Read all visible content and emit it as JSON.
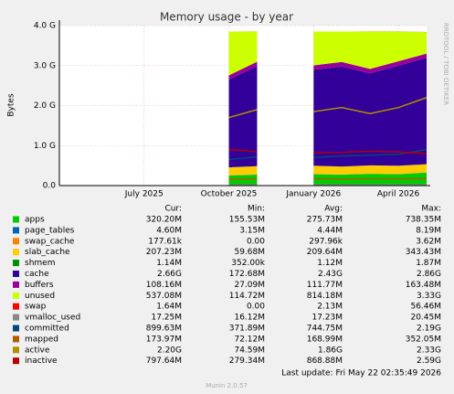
{
  "chart_data": {
    "type": "area",
    "title": "Memory usage - by year",
    "y_label": "Bytes",
    "side_text": "RRDTOOL / TOBI OETIKER",
    "footer": "Last update: Fri May 22 02:35:49 2026",
    "credit": "Munin 2.0.57",
    "stat_headers": [
      "Cur:",
      "Min:",
      "Avg:",
      "Max:"
    ],
    "x": [
      "2025-10",
      "2025-11",
      "2025-12",
      "2026-01",
      "2026-02",
      "2026-03",
      "2026-04",
      "2026-05"
    ],
    "xlim": [
      "2025-04",
      "2026-05"
    ],
    "xticks": [
      {
        "value": "2025-07",
        "label": "July 2025"
      },
      {
        "value": "2025-10",
        "label": "October 2025"
      },
      {
        "value": "2026-01",
        "label": "January 2026"
      },
      {
        "value": "2026-04",
        "label": "April 2026"
      }
    ],
    "ylim": [
      0,
      4000000000
    ],
    "yticks": [
      {
        "value": 0,
        "label": "0.0"
      },
      {
        "value": 1000000000,
        "label": "1.0 G"
      },
      {
        "value": 2000000000,
        "label": "2.0 G"
      },
      {
        "value": 3000000000,
        "label": "3.0 G"
      },
      {
        "value": 4000000000,
        "label": "4.0 G"
      }
    ],
    "grid": true,
    "series": [
      {
        "name": "apps",
        "color": "#00cc00",
        "draw": "area",
        "cur": "320.20M",
        "min": "155.53M",
        "avg": "275.73M",
        "max": "738.35M",
        "values": [
          250000000,
          270000000,
          null,
          280000000,
          270000000,
          290000000,
          280000000,
          320000000
        ]
      },
      {
        "name": "page_tables",
        "color": "#0066b3",
        "draw": "area",
        "cur": "4.60M",
        "min": "3.15M",
        "avg": "4.44M",
        "max": "8.19M",
        "values": [
          4000000,
          4500000,
          null,
          4400000,
          4400000,
          4500000,
          4500000,
          4600000
        ]
      },
      {
        "name": "swap_cache",
        "color": "#ff8000",
        "draw": "area",
        "cur": "177.61k",
        "min": "0.00",
        "avg": "297.96k",
        "max": "3.62M",
        "values": [
          200000,
          300000,
          null,
          300000,
          300000,
          300000,
          300000,
          177610
        ]
      },
      {
        "name": "slab_cache",
        "color": "#ffcc00",
        "draw": "area",
        "cur": "207.23M",
        "min": "59.68M",
        "avg": "209.64M",
        "max": "343.43M",
        "values": [
          200000000,
          210000000,
          null,
          210000000,
          200000000,
          210000000,
          210000000,
          207000000
        ]
      },
      {
        "name": "shmem",
        "color": "#008f00",
        "draw": "area",
        "cur": "1.14M",
        "min": "352.00k",
        "avg": "1.12M",
        "max": "1.87M",
        "values": [
          1100000,
          1100000,
          null,
          1100000,
          1100000,
          1100000,
          1100000,
          1140000
        ]
      },
      {
        "name": "cache",
        "color": "#330099",
        "draw": "area",
        "cur": "2.66G",
        "min": "172.68M",
        "avg": "2.43G",
        "max": "2.86G",
        "values": [
          2200000000,
          2500000000,
          null,
          2400000000,
          2500000000,
          2300000000,
          2500000000,
          2660000000
        ]
      },
      {
        "name": "buffers",
        "color": "#990099",
        "draw": "area",
        "cur": "108.16M",
        "min": "27.09M",
        "avg": "111.77M",
        "max": "163.48M",
        "values": [
          100000000,
          110000000,
          null,
          110000000,
          115000000,
          110000000,
          112000000,
          108000000
        ]
      },
      {
        "name": "unused",
        "color": "#ccff00",
        "draw": "area",
        "cur": "537.08M",
        "min": "114.72M",
        "avg": "814.18M",
        "max": "3.33G",
        "values": [
          1095000000,
          755000000,
          null,
          845000000,
          760000000,
          935000000,
          743000000,
          537000000
        ]
      },
      {
        "name": "swap",
        "color": "#ff0000",
        "draw": "area",
        "cur": "1.64M",
        "min": "0.00",
        "avg": "2.13M",
        "max": "56.46M",
        "values": [
          2000000,
          2000000,
          null,
          2000000,
          2000000,
          2000000,
          2000000,
          1640000
        ]
      },
      {
        "name": "vmalloc_used",
        "color": "#888888",
        "draw": "line",
        "cur": "17.25M",
        "min": "16.12M",
        "avg": "17.23M",
        "max": "20.45M",
        "values": [
          17000000,
          17000000,
          null,
          17200000,
          17200000,
          17200000,
          17200000,
          17250000
        ]
      },
      {
        "name": "committed",
        "color": "#00487d",
        "draw": "line",
        "cur": "899.63M",
        "min": "371.89M",
        "avg": "744.75M",
        "max": "2.19G",
        "values": [
          650000000,
          720000000,
          null,
          700000000,
          740000000,
          760000000,
          780000000,
          900000000
        ]
      },
      {
        "name": "mapped",
        "color": "#b35a00",
        "draw": "line",
        "cur": "173.97M",
        "min": "72.12M",
        "avg": "168.99M",
        "max": "352.05M",
        "values": [
          160000000,
          170000000,
          null,
          170000000,
          165000000,
          170000000,
          170000000,
          174000000
        ]
      },
      {
        "name": "active",
        "color": "#b38f00",
        "draw": "line",
        "cur": "2.20G",
        "min": "74.59M",
        "avg": "1.86G",
        "max": "2.33G",
        "values": [
          1700000000,
          1900000000,
          null,
          1850000000,
          1950000000,
          1800000000,
          1950000000,
          2200000000
        ]
      },
      {
        "name": "inactive",
        "color": "#b30000",
        "draw": "line",
        "cur": "797.64M",
        "min": "279.34M",
        "avg": "868.88M",
        "max": "2.59G",
        "values": [
          900000000,
          850000000,
          null,
          820000000,
          830000000,
          860000000,
          840000000,
          800000000
        ]
      }
    ]
  }
}
